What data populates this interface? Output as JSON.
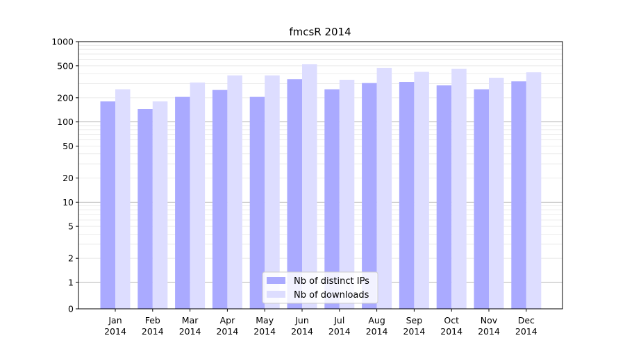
{
  "chart_data": {
    "type": "bar",
    "title": "fmcsR 2014",
    "xlabel": "",
    "ylabel": "",
    "yscale": "symlog",
    "ylim": [
      0,
      1000
    ],
    "yticks": [
      0,
      1,
      2,
      5,
      10,
      20,
      50,
      100,
      200,
      500,
      1000
    ],
    "grid": "horizontal",
    "legend_position": "bottom-center",
    "categories": [
      "Jan\n2014",
      "Feb\n2014",
      "Mar\n2014",
      "Apr\n2014",
      "May\n2014",
      "Jun\n2014",
      "Jul\n2014",
      "Aug\n2014",
      "Sep\n2014",
      "Oct\n2014",
      "Nov\n2014",
      "Dec\n2014"
    ],
    "series": [
      {
        "name": "Nb of distinct IPs",
        "color": "#aaaaff",
        "values": [
          180,
          145,
          205,
          250,
          205,
          340,
          255,
          305,
          315,
          285,
          255,
          320
        ]
      },
      {
        "name": "Nb of downloads",
        "color": "#ddddff",
        "values": [
          255,
          180,
          310,
          380,
          380,
          525,
          335,
          470,
          420,
          460,
          355,
          415
        ]
      }
    ]
  }
}
